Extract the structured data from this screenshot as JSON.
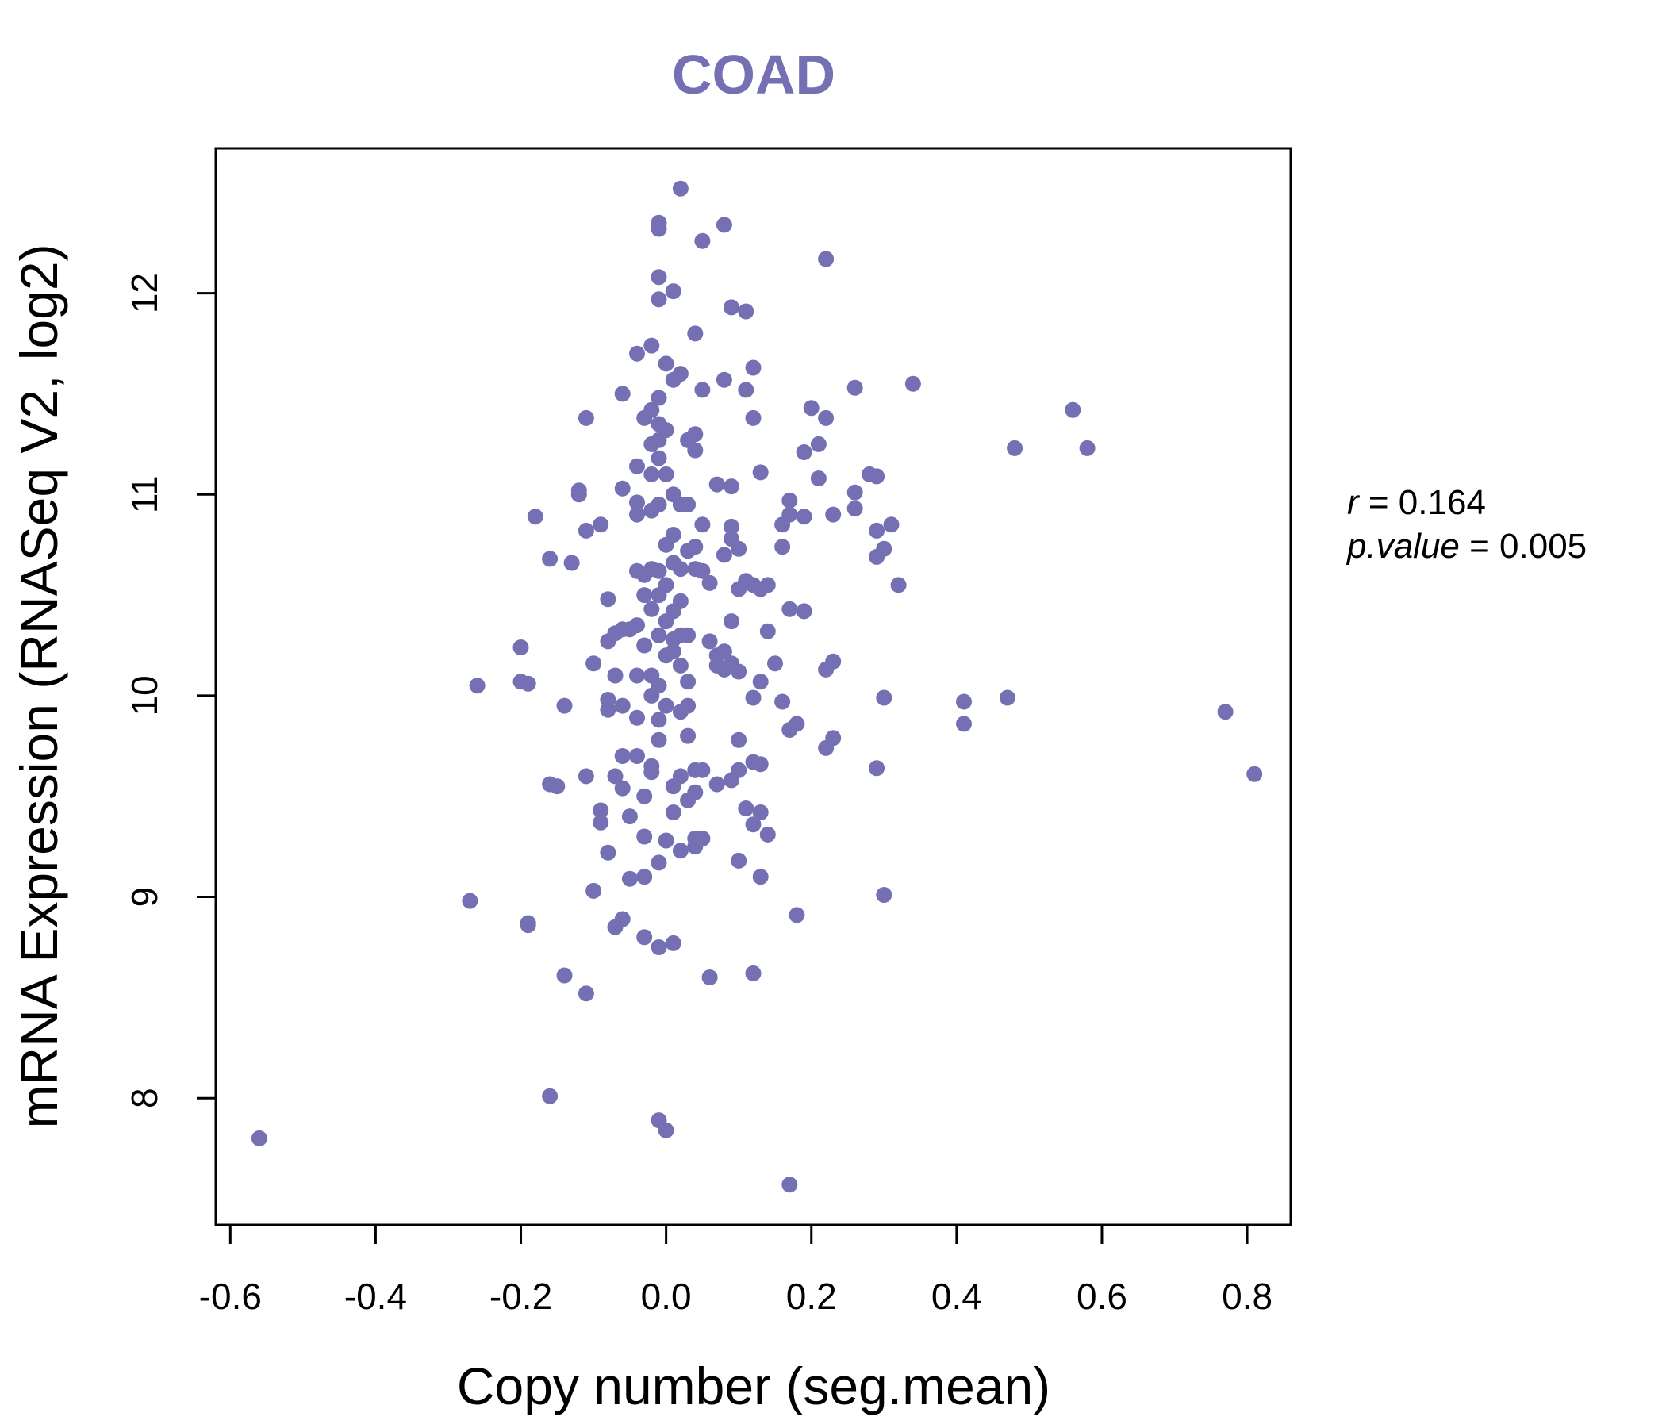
{
  "chart_data": {
    "type": "scatter",
    "title": "COAD",
    "xlabel": "Copy number (seg.mean)",
    "ylabel": "mRNA Expression (RNASeq V2, log2)",
    "xlim": [
      -0.62,
      0.86
    ],
    "ylim": [
      7.37,
      12.72
    ],
    "x_ticks": [
      -0.6,
      -0.4,
      -0.2,
      0.0,
      0.2,
      0.4,
      0.6,
      0.8
    ],
    "x_tick_labels": [
      "-0.6",
      "-0.4",
      "-0.2",
      "0.0",
      "0.2",
      "0.4",
      "0.6",
      "0.8"
    ],
    "y_ticks": [
      8,
      9,
      10,
      11,
      12
    ],
    "y_tick_labels": [
      "8",
      "9",
      "10",
      "11",
      "12"
    ],
    "grid": false,
    "point_color": "#7570b3",
    "annotations": {
      "r_label": "r",
      "r_eq": " = 0.164",
      "p_label": "p.value",
      "p_eq": " = 0.005"
    },
    "points": [
      [
        -0.56,
        7.8
      ],
      [
        -0.27,
        8.98
      ],
      [
        -0.26,
        10.05
      ],
      [
        -0.2,
        10.24
      ],
      [
        -0.2,
        10.07
      ],
      [
        -0.19,
        10.06
      ],
      [
        -0.19,
        8.87
      ],
      [
        -0.19,
        8.86
      ],
      [
        -0.18,
        10.89
      ],
      [
        -0.16,
        10.68
      ],
      [
        -0.16,
        9.56
      ],
      [
        -0.15,
        9.55
      ],
      [
        -0.16,
        8.01
      ],
      [
        -0.14,
        9.95
      ],
      [
        -0.14,
        8.61
      ],
      [
        -0.13,
        10.66
      ],
      [
        -0.12,
        11.02
      ],
      [
        -0.12,
        11.0
      ],
      [
        -0.11,
        11.38
      ],
      [
        -0.11,
        10.82
      ],
      [
        -0.11,
        9.6
      ],
      [
        -0.11,
        8.52
      ],
      [
        -0.1,
        9.03
      ],
      [
        -0.1,
        10.16
      ],
      [
        -0.09,
        10.85
      ],
      [
        -0.09,
        9.43
      ],
      [
        -0.09,
        9.37
      ],
      [
        -0.08,
        10.48
      ],
      [
        -0.08,
        10.27
      ],
      [
        -0.08,
        9.98
      ],
      [
        -0.08,
        9.93
      ],
      [
        -0.08,
        9.22
      ],
      [
        -0.07,
        10.31
      ],
      [
        -0.07,
        10.1
      ],
      [
        -0.07,
        9.6
      ],
      [
        -0.07,
        8.85
      ],
      [
        -0.06,
        11.5
      ],
      [
        -0.06,
        11.03
      ],
      [
        -0.06,
        10.33
      ],
      [
        -0.06,
        9.95
      ],
      [
        -0.06,
        9.7
      ],
      [
        -0.06,
        9.54
      ],
      [
        -0.06,
        8.89
      ],
      [
        -0.05,
        10.33
      ],
      [
        -0.05,
        9.4
      ],
      [
        -0.05,
        9.09
      ],
      [
        -0.04,
        11.7
      ],
      [
        -0.04,
        11.14
      ],
      [
        -0.04,
        10.96
      ],
      [
        -0.04,
        10.9
      ],
      [
        -0.04,
        10.62
      ],
      [
        -0.04,
        10.35
      ],
      [
        -0.04,
        10.1
      ],
      [
        -0.04,
        9.89
      ],
      [
        -0.04,
        9.7
      ],
      [
        -0.03,
        11.38
      ],
      [
        -0.03,
        10.6
      ],
      [
        -0.03,
        10.5
      ],
      [
        -0.03,
        10.25
      ],
      [
        -0.03,
        9.5
      ],
      [
        -0.03,
        9.3
      ],
      [
        -0.03,
        9.1
      ],
      [
        -0.03,
        8.8
      ],
      [
        -0.02,
        11.74
      ],
      [
        -0.02,
        11.42
      ],
      [
        -0.02,
        11.25
      ],
      [
        -0.02,
        11.1
      ],
      [
        -0.02,
        10.92
      ],
      [
        -0.02,
        10.63
      ],
      [
        -0.02,
        10.43
      ],
      [
        -0.02,
        10.1
      ],
      [
        -0.02,
        10.0
      ],
      [
        -0.02,
        9.65
      ],
      [
        -0.02,
        9.62
      ],
      [
        -0.01,
        12.35
      ],
      [
        -0.01,
        12.32
      ],
      [
        -0.01,
        12.08
      ],
      [
        -0.01,
        11.97
      ],
      [
        -0.01,
        11.48
      ],
      [
        -0.01,
        11.35
      ],
      [
        -0.01,
        11.27
      ],
      [
        -0.01,
        11.18
      ],
      [
        -0.01,
        10.95
      ],
      [
        -0.01,
        10.62
      ],
      [
        -0.01,
        10.5
      ],
      [
        -0.01,
        10.3
      ],
      [
        -0.01,
        10.05
      ],
      [
        -0.01,
        9.88
      ],
      [
        -0.01,
        9.78
      ],
      [
        -0.01,
        9.17
      ],
      [
        -0.01,
        8.75
      ],
      [
        -0.01,
        7.89
      ],
      [
        0.0,
        11.65
      ],
      [
        0.0,
        11.32
      ],
      [
        0.0,
        11.1
      ],
      [
        0.0,
        10.75
      ],
      [
        0.0,
        10.55
      ],
      [
        0.0,
        10.37
      ],
      [
        0.0,
        10.2
      ],
      [
        0.0,
        9.95
      ],
      [
        0.0,
        9.28
      ],
      [
        0.0,
        7.84
      ],
      [
        0.01,
        12.01
      ],
      [
        0.01,
        11.57
      ],
      [
        0.01,
        11.0
      ],
      [
        0.01,
        10.8
      ],
      [
        0.01,
        10.66
      ],
      [
        0.01,
        10.42
      ],
      [
        0.01,
        10.28
      ],
      [
        0.01,
        10.22
      ],
      [
        0.01,
        9.55
      ],
      [
        0.01,
        9.42
      ],
      [
        0.01,
        8.77
      ],
      [
        0.02,
        11.6
      ],
      [
        0.02,
        10.95
      ],
      [
        0.02,
        10.63
      ],
      [
        0.02,
        10.47
      ],
      [
        0.02,
        10.3
      ],
      [
        0.02,
        10.15
      ],
      [
        0.02,
        9.92
      ],
      [
        0.02,
        9.6
      ],
      [
        0.02,
        9.23
      ],
      [
        0.02,
        12.52
      ],
      [
        0.03,
        11.27
      ],
      [
        0.03,
        10.95
      ],
      [
        0.03,
        10.72
      ],
      [
        0.03,
        10.3
      ],
      [
        0.03,
        10.07
      ],
      [
        0.03,
        9.95
      ],
      [
        0.03,
        9.8
      ],
      [
        0.03,
        9.48
      ],
      [
        0.04,
        11.8
      ],
      [
        0.04,
        11.3
      ],
      [
        0.04,
        11.22
      ],
      [
        0.04,
        10.74
      ],
      [
        0.04,
        10.63
      ],
      [
        0.04,
        9.63
      ],
      [
        0.04,
        9.52
      ],
      [
        0.04,
        9.29
      ],
      [
        0.04,
        9.25
      ],
      [
        0.05,
        12.26
      ],
      [
        0.05,
        11.52
      ],
      [
        0.05,
        10.85
      ],
      [
        0.05,
        10.62
      ],
      [
        0.05,
        9.63
      ],
      [
        0.05,
        9.29
      ],
      [
        0.06,
        10.56
      ],
      [
        0.06,
        10.27
      ],
      [
        0.06,
        8.6
      ],
      [
        0.07,
        11.05
      ],
      [
        0.07,
        10.2
      ],
      [
        0.07,
        10.15
      ],
      [
        0.07,
        9.56
      ],
      [
        0.08,
        12.34
      ],
      [
        0.08,
        11.57
      ],
      [
        0.08,
        10.7
      ],
      [
        0.08,
        10.22
      ],
      [
        0.08,
        10.13
      ],
      [
        0.09,
        11.93
      ],
      [
        0.09,
        11.04
      ],
      [
        0.09,
        10.84
      ],
      [
        0.09,
        10.78
      ],
      [
        0.09,
        10.37
      ],
      [
        0.09,
        10.16
      ],
      [
        0.09,
        9.58
      ],
      [
        0.1,
        10.73
      ],
      [
        0.1,
        10.53
      ],
      [
        0.1,
        10.12
      ],
      [
        0.1,
        9.78
      ],
      [
        0.1,
        9.63
      ],
      [
        0.1,
        9.18
      ],
      [
        0.11,
        11.91
      ],
      [
        0.11,
        11.52
      ],
      [
        0.11,
        10.57
      ],
      [
        0.11,
        9.44
      ],
      [
        0.12,
        11.63
      ],
      [
        0.12,
        11.38
      ],
      [
        0.12,
        10.55
      ],
      [
        0.12,
        9.99
      ],
      [
        0.12,
        9.67
      ],
      [
        0.12,
        9.36
      ],
      [
        0.12,
        8.62
      ],
      [
        0.13,
        11.11
      ],
      [
        0.13,
        10.53
      ],
      [
        0.13,
        10.07
      ],
      [
        0.13,
        9.66
      ],
      [
        0.13,
        9.42
      ],
      [
        0.13,
        9.1
      ],
      [
        0.14,
        10.55
      ],
      [
        0.14,
        9.31
      ],
      [
        0.14,
        10.32
      ],
      [
        0.15,
        10.16
      ],
      [
        0.16,
        10.85
      ],
      [
        0.16,
        10.74
      ],
      [
        0.16,
        9.97
      ],
      [
        0.17,
        10.97
      ],
      [
        0.17,
        10.9
      ],
      [
        0.17,
        10.43
      ],
      [
        0.17,
        9.83
      ],
      [
        0.18,
        9.86
      ],
      [
        0.18,
        8.91
      ],
      [
        0.17,
        7.57
      ],
      [
        0.19,
        11.21
      ],
      [
        0.19,
        10.89
      ],
      [
        0.19,
        10.42
      ],
      [
        0.2,
        11.43
      ],
      [
        0.21,
        11.25
      ],
      [
        0.21,
        11.08
      ],
      [
        0.22,
        12.17
      ],
      [
        0.22,
        11.38
      ],
      [
        0.22,
        10.13
      ],
      [
        0.22,
        9.74
      ],
      [
        0.23,
        10.9
      ],
      [
        0.23,
        10.17
      ],
      [
        0.23,
        9.79
      ],
      [
        0.26,
        11.53
      ],
      [
        0.26,
        11.01
      ],
      [
        0.26,
        10.93
      ],
      [
        0.28,
        11.1
      ],
      [
        0.29,
        11.09
      ],
      [
        0.29,
        10.82
      ],
      [
        0.29,
        10.69
      ],
      [
        0.29,
        9.64
      ],
      [
        0.3,
        9.99
      ],
      [
        0.3,
        9.01
      ],
      [
        0.3,
        10.73
      ],
      [
        0.31,
        10.85
      ],
      [
        0.32,
        10.55
      ],
      [
        0.34,
        11.55
      ],
      [
        0.41,
        9.97
      ],
      [
        0.41,
        9.86
      ],
      [
        0.47,
        9.99
      ],
      [
        0.48,
        11.23
      ],
      [
        0.56,
        11.42
      ],
      [
        0.58,
        11.23
      ],
      [
        0.77,
        9.92
      ],
      [
        0.81,
        9.61
      ]
    ]
  }
}
